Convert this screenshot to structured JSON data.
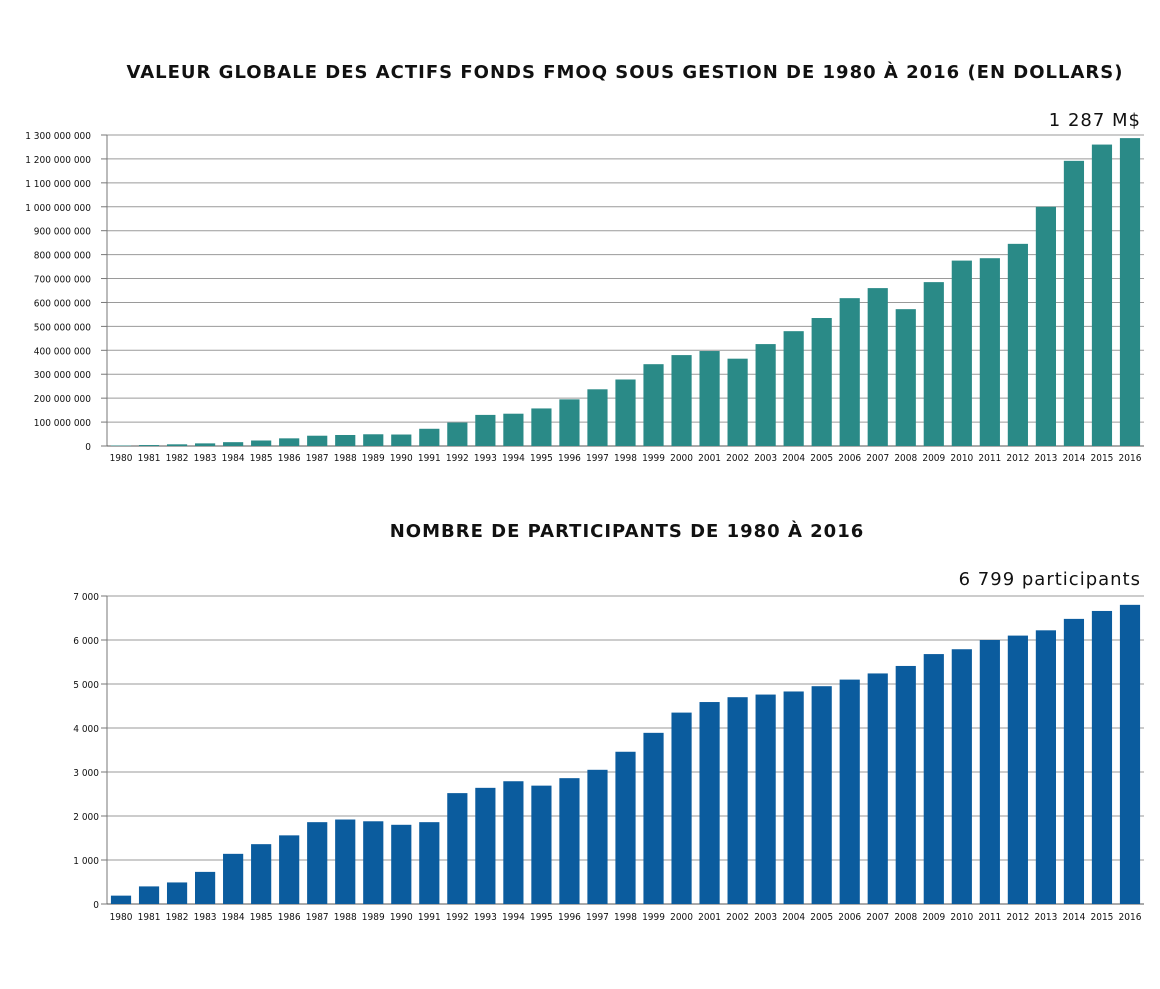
{
  "chart_data": [
    {
      "type": "bar",
      "title": "VALEUR GLOBALE DES ACTIFS FONDS FMOQ SOUS GESTION DE 1980 À 2016 (EN DOLLARS)",
      "annotation": "1 287 M$",
      "color": "#2a8a87",
      "categories": [
        "1980",
        "1981",
        "1982",
        "1983",
        "1984",
        "1985",
        "1986",
        "1987",
        "1988",
        "1989",
        "1990",
        "1991",
        "1992",
        "1993",
        "1994",
        "1995",
        "1996",
        "1997",
        "1998",
        "1999",
        "2000",
        "2001",
        "2002",
        "2003",
        "2004",
        "2005",
        "2006",
        "2007",
        "2008",
        "2009",
        "2010",
        "2011",
        "2012",
        "2013",
        "2014",
        "2015",
        "2016"
      ],
      "values": [
        2000000,
        4000000,
        7000000,
        11000000,
        16000000,
        23000000,
        32000000,
        43000000,
        46000000,
        49000000,
        48000000,
        72000000,
        98000000,
        130000000,
        135000000,
        157000000,
        195000000,
        237000000,
        278000000,
        342000000,
        380000000,
        397000000,
        365000000,
        426000000,
        480000000,
        535000000,
        618000000,
        660000000,
        572000000,
        685000000,
        775000000,
        785000000,
        845000000,
        1000000000,
        1192000000,
        1260000000,
        1287000000
      ],
      "ylim": [
        0,
        1300000000
      ],
      "yticks": [
        "0",
        "100 000 000",
        "200 000 000",
        "300 000 000",
        "400 000 000",
        "500 000 000",
        "600 000 000",
        "700 000 000",
        "800 000 000",
        "900 000 000",
        "1 000 000 000",
        "1 100 000 000",
        "1 200 000 000",
        "1 300 000 000"
      ],
      "grid": true
    },
    {
      "type": "bar",
      "title": "NOMBRE DE PARTICIPANTS DE 1980 À 2016",
      "annotation": "6 799 participants",
      "color": "#0b5c9e",
      "categories": [
        "1980",
        "1981",
        "1982",
        "1983",
        "1984",
        "1985",
        "1986",
        "1987",
        "1988",
        "1989",
        "1990",
        "1991",
        "1992",
        "1993",
        "1994",
        "1995",
        "1996",
        "1997",
        "1998",
        "1999",
        "2000",
        "2001",
        "2002",
        "2003",
        "2004",
        "2005",
        "2006",
        "2007",
        "2008",
        "2009",
        "2010",
        "2011",
        "2012",
        "2013",
        "2014",
        "2015",
        "2016"
      ],
      "values": [
        190,
        400,
        490,
        730,
        1140,
        1360,
        1560,
        1860,
        1920,
        1880,
        1800,
        1860,
        2520,
        2640,
        2790,
        2690,
        2860,
        3050,
        3460,
        3890,
        4350,
        4590,
        4700,
        4760,
        4830,
        4950,
        5100,
        5240,
        5410,
        5680,
        5790,
        6000,
        6100,
        6220,
        6480,
        6660,
        6799
      ],
      "ylim": [
        0,
        7000
      ],
      "yticks": [
        "0",
        "1 000",
        "2 000",
        "3 000",
        "4 000",
        "5 000",
        "6 000",
        "7 000"
      ],
      "grid": true
    }
  ]
}
